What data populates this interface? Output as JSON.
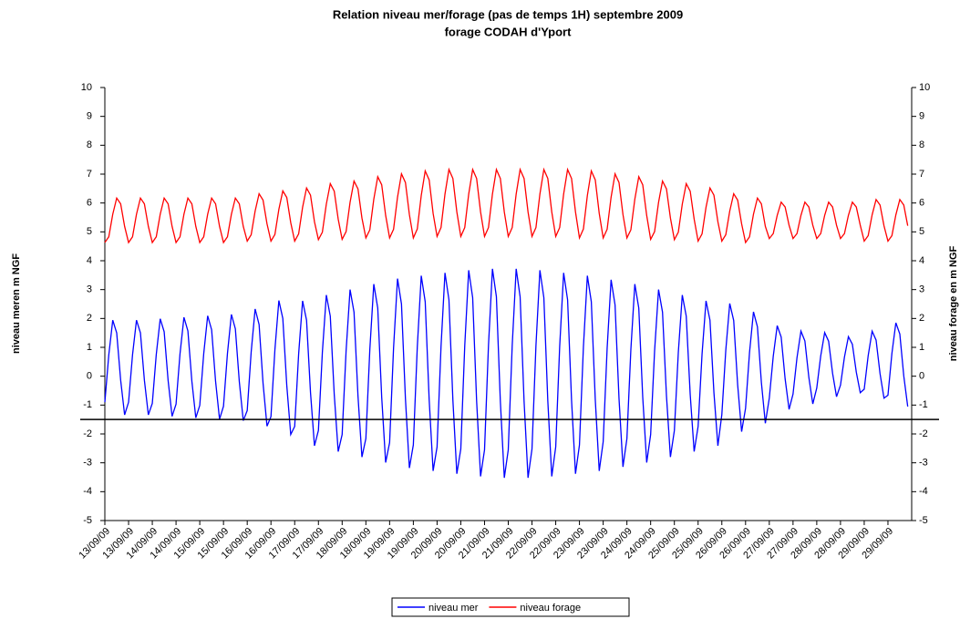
{
  "chart_data": {
    "type": "line",
    "title": "Relation niveau mer/forage (pas de temps 1H) septembre 2009",
    "subtitle": "forage CODAH d'Yport",
    "y_label": "niveau meren m NGF",
    "y2_label": "niveau forage en m NGF",
    "ylim": [
      -5,
      10
    ],
    "yticks": [
      -5,
      -4,
      -3,
      -2,
      -1,
      0,
      1,
      2,
      3,
      4,
      5,
      6,
      7,
      8,
      9,
      10
    ],
    "y2lim": [
      -5,
      10
    ],
    "y2ticks": [
      -5,
      -4,
      -3,
      -2,
      -1,
      0,
      1,
      2,
      3,
      4,
      5,
      6,
      7,
      8,
      9,
      10
    ],
    "reference_line": -1.5,
    "legend": "bottom",
    "categories": [
      "13/09/09",
      null,
      null,
      null,
      null,
      null,
      "13/09/09",
      null,
      null,
      null,
      null,
      null,
      "14/09/09",
      null,
      null,
      null,
      null,
      null,
      "14/09/09",
      null,
      null,
      null,
      null,
      null,
      "15/09/09",
      null,
      null,
      null,
      null,
      null,
      "15/09/09",
      null,
      null,
      null,
      null,
      null,
      "16/09/09",
      null,
      null,
      null,
      null,
      null,
      "16/09/09",
      null,
      null,
      null,
      null,
      null,
      "17/09/09",
      null,
      null,
      null,
      null,
      null,
      "17/09/09",
      null,
      null,
      null,
      null,
      null,
      "18/09/09",
      null,
      null,
      null,
      null,
      null,
      "18/09/09",
      null,
      null,
      null,
      null,
      null,
      "19/09/09",
      null,
      null,
      null,
      null,
      null,
      "19/09/09",
      null,
      null,
      null,
      null,
      null,
      "20/09/09",
      null,
      null,
      null,
      null,
      null,
      "20/09/09",
      null,
      null,
      null,
      null,
      null,
      "21/09/09",
      null,
      null,
      null,
      null,
      null,
      "21/09/09",
      null,
      null,
      null,
      null,
      null,
      "22/09/09",
      null,
      null,
      null,
      null,
      null,
      "22/09/09",
      null,
      null,
      null,
      null,
      null,
      "23/09/09",
      null,
      null,
      null,
      null,
      null,
      "23/09/09",
      null,
      null,
      null,
      null,
      null,
      "24/09/09",
      null,
      null,
      null,
      null,
      null,
      "24/09/09",
      null,
      null,
      null,
      null,
      null,
      "25/09/09",
      null,
      null,
      null,
      null,
      null,
      "25/09/09",
      null,
      null,
      null,
      null,
      null,
      "26/09/09",
      null,
      null,
      null,
      null,
      null,
      "26/09/09",
      null,
      null,
      null,
      null,
      null,
      "27/09/09",
      null,
      null,
      null,
      null,
      null,
      "27/09/09",
      null,
      null,
      null,
      null,
      null,
      "28/09/09",
      null,
      null,
      null,
      null,
      null,
      "28/09/09",
      null,
      null,
      null,
      null,
      null,
      "29/09/09",
      null,
      null,
      null,
      null,
      null,
      "29/09/09",
      null,
      null,
      null,
      null,
      null
    ],
    "series": [
      {
        "name": "niveau mer",
        "color": "#0000ff",
        "values": [
          -0.9,
          0.74,
          1.94,
          1.5,
          -0.14,
          -1.34,
          -0.9,
          0.74,
          1.94,
          1.5,
          -0.14,
          -1.34,
          -0.94,
          0.75,
          1.99,
          1.54,
          -0.15,
          -1.39,
          -0.97,
          0.77,
          2.04,
          1.57,
          -0.17,
          -1.44,
          -1.01,
          0.78,
          2.09,
          1.61,
          -0.18,
          -1.49,
          -1.04,
          0.79,
          2.14,
          1.64,
          -0.19,
          -1.54,
          -1.19,
          0.84,
          2.33,
          1.79,
          -0.24,
          -1.73,
          -1.4,
          0.92,
          2.62,
          2.0,
          -0.32,
          -2.02,
          -1.74,
          0.77,
          2.61,
          1.94,
          -0.57,
          -2.41,
          -1.88,
          0.83,
          2.81,
          2.08,
          -0.63,
          -2.61,
          -2.02,
          0.88,
          3.0,
          2.22,
          -0.68,
          -2.8,
          -2.16,
          0.93,
          3.19,
          2.36,
          -0.73,
          -2.99,
          -2.3,
          0.98,
          3.38,
          2.5,
          -0.78,
          -3.18,
          -2.38,
          1.01,
          3.48,
          2.58,
          -0.81,
          -3.28,
          -2.45,
          1.03,
          3.58,
          2.65,
          -0.83,
          -3.38,
          -2.52,
          1.06,
          3.67,
          2.72,
          -0.86,
          -3.47,
          -2.55,
          1.07,
          3.72,
          2.75,
          -0.87,
          -3.52,
          -2.55,
          1.07,
          3.72,
          2.75,
          -0.87,
          -3.52,
          -2.52,
          1.06,
          3.67,
          2.72,
          -0.86,
          -3.47,
          -2.45,
          1.03,
          3.58,
          2.65,
          -0.83,
          -3.38,
          -2.38,
          1.01,
          3.48,
          2.58,
          -0.81,
          -3.28,
          -2.27,
          0.97,
          3.34,
          2.47,
          -0.77,
          -3.14,
          -2.16,
          0.93,
          3.19,
          2.36,
          -0.73,
          -2.99,
          -2.02,
          0.88,
          3.0,
          2.22,
          -0.68,
          -2.8,
          -1.88,
          0.83,
          2.81,
          2.08,
          -0.63,
          -2.61,
          -1.74,
          0.77,
          2.61,
          1.94,
          -0.57,
          -2.41,
          -1.33,
          0.9,
          2.52,
          1.93,
          -0.3,
          -1.92,
          -1.11,
          0.82,
          2.23,
          1.71,
          -0.22,
          -1.63,
          -0.76,
          0.69,
          1.75,
          1.36,
          -0.09,
          -1.15,
          -0.62,
          0.64,
          1.56,
          1.22,
          -0.04,
          -0.96,
          -0.41,
          0.7,
          1.51,
          1.21,
          0.1,
          -0.71,
          -0.31,
          0.66,
          1.37,
          1.11,
          0.14,
          -0.57,
          -0.45,
          0.71,
          1.56,
          1.25,
          0.09,
          -0.76,
          -0.66,
          0.79,
          1.85,
          1.46,
          0.01,
          -1.05
        ]
      },
      {
        "name": "niveau forage",
        "color": "#ff0000",
        "axis": "y2",
        "values": [
          4.63,
          4.83,
          5.61,
          6.17,
          5.97,
          5.19,
          4.63,
          4.83,
          5.61,
          6.17,
          5.97,
          5.19,
          4.63,
          4.83,
          5.61,
          6.17,
          5.97,
          5.19,
          4.63,
          4.83,
          5.61,
          6.17,
          5.97,
          5.19,
          4.63,
          4.83,
          5.61,
          6.17,
          5.97,
          5.19,
          4.63,
          4.83,
          5.61,
          6.17,
          5.97,
          5.19,
          4.68,
          4.9,
          5.72,
          6.32,
          6.1,
          5.28,
          4.68,
          4.91,
          5.78,
          6.42,
          6.19,
          5.32,
          4.68,
          4.93,
          5.85,
          6.52,
          6.27,
          5.35,
          4.73,
          4.99,
          5.96,
          6.67,
          6.41,
          5.44,
          4.74,
          5.01,
          6.02,
          6.76,
          6.49,
          5.48,
          4.79,
          5.07,
          6.13,
          6.91,
          6.63,
          5.57,
          4.79,
          5.09,
          6.2,
          7.01,
          6.71,
          5.6,
          4.79,
          5.1,
          6.26,
          7.11,
          6.8,
          5.64,
          4.84,
          5.15,
          6.31,
          7.16,
          6.85,
          5.69,
          4.84,
          5.15,
          6.31,
          7.16,
          6.85,
          5.69,
          4.84,
          5.15,
          6.31,
          7.16,
          6.85,
          5.69,
          4.84,
          5.15,
          6.31,
          7.16,
          6.85,
          5.69,
          4.84,
          5.15,
          6.31,
          7.16,
          6.85,
          5.69,
          4.84,
          5.15,
          6.31,
          7.16,
          6.85,
          5.69,
          4.79,
          5.1,
          6.26,
          7.11,
          6.8,
          5.64,
          4.79,
          5.09,
          6.2,
          7.01,
          6.71,
          5.6,
          4.79,
          5.07,
          6.13,
          6.91,
          6.63,
          5.57,
          4.74,
          5.01,
          6.02,
          6.76,
          6.49,
          5.48,
          4.73,
          4.99,
          5.96,
          6.67,
          6.41,
          5.44,
          4.68,
          4.93,
          5.85,
          6.52,
          6.27,
          5.35,
          4.68,
          4.9,
          5.72,
          6.32,
          6.1,
          5.28,
          4.63,
          4.83,
          5.61,
          6.17,
          5.97,
          5.19,
          4.77,
          4.94,
          5.57,
          6.03,
          5.86,
          5.23,
          4.77,
          4.94,
          5.57,
          6.03,
          5.86,
          5.23,
          4.77,
          4.94,
          5.57,
          6.03,
          5.86,
          5.23,
          4.77,
          4.94,
          5.57,
          6.03,
          5.86,
          5.23,
          4.68,
          4.87,
          5.59,
          6.12,
          5.93,
          5.21,
          4.68,
          4.87,
          5.59,
          6.12,
          5.93,
          5.21
        ]
      }
    ]
  }
}
